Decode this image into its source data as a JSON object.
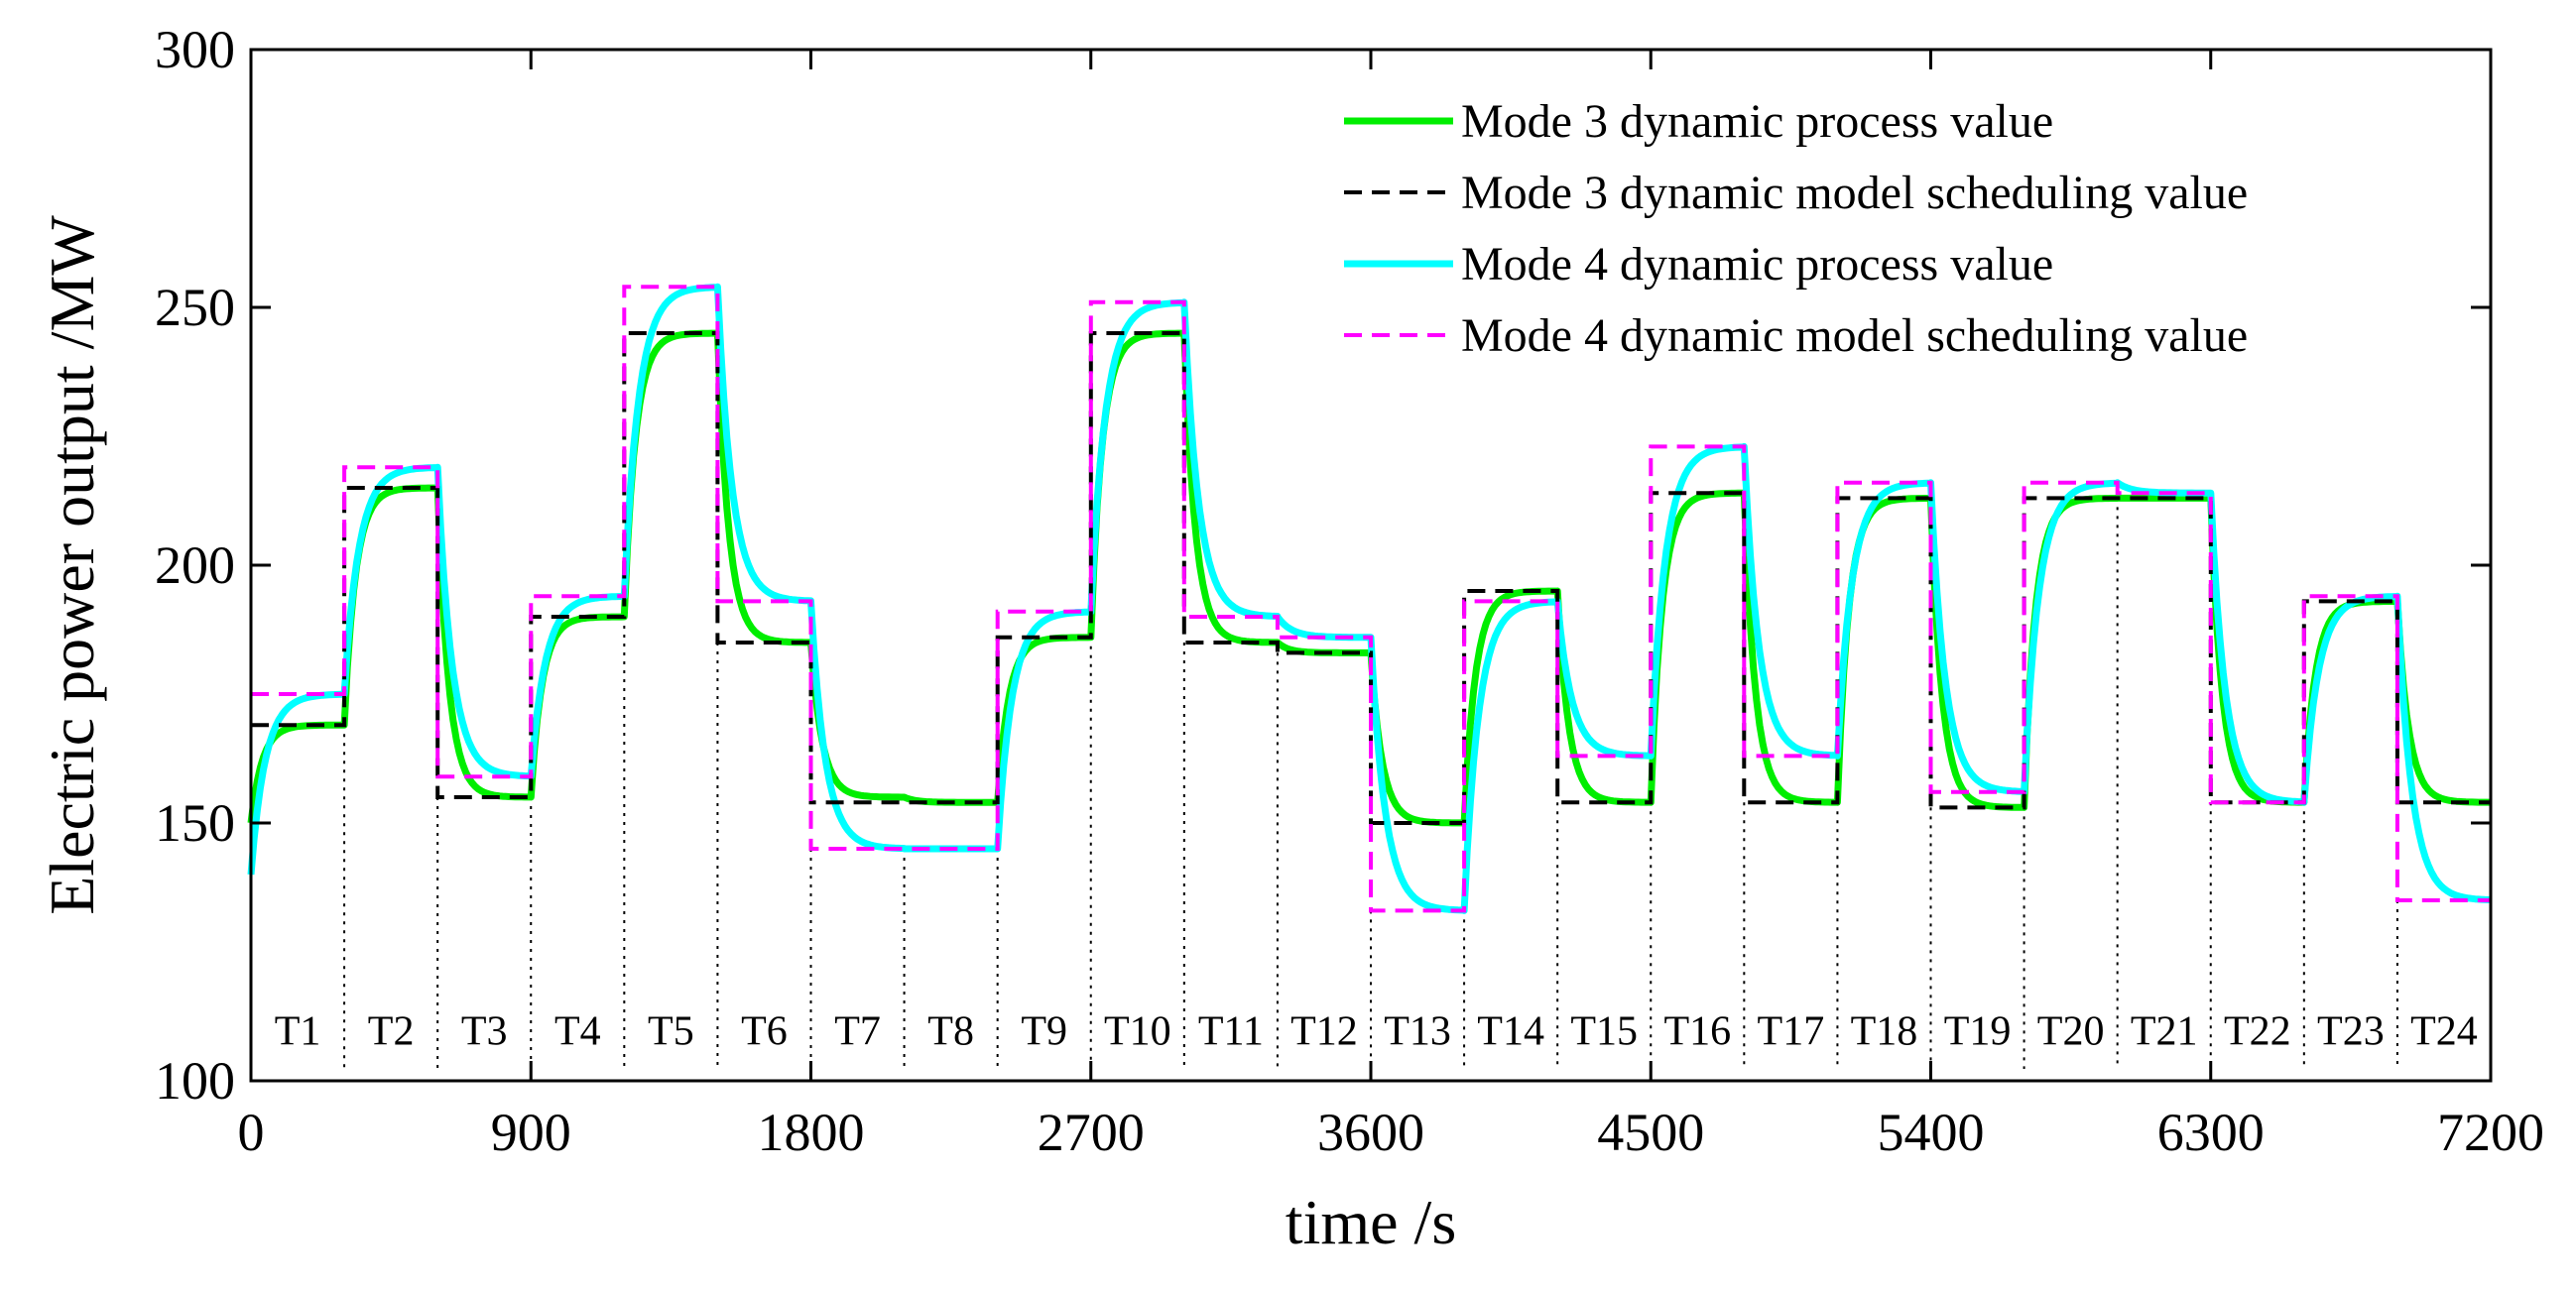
{
  "chart_data": {
    "type": "line",
    "title": "",
    "xlabel": "time /s",
    "ylabel": "Electric power output /MW",
    "xlim": [
      0,
      7200
    ],
    "ylim": [
      100,
      300
    ],
    "xticks": [
      0,
      900,
      1800,
      2700,
      3600,
      4500,
      5400,
      6300,
      7200
    ],
    "yticks": [
      100,
      150,
      200,
      250,
      300
    ],
    "grid": false,
    "legend_position": "top-right",
    "period_seconds": 300,
    "periods": [
      "T1",
      "T2",
      "T3",
      "T4",
      "T5",
      "T6",
      "T7",
      "T8",
      "T9",
      "T10",
      "T11",
      "T12",
      "T13",
      "T14",
      "T15",
      "T16",
      "T17",
      "T18",
      "T19",
      "T20",
      "T21",
      "T22",
      "T23",
      "T24"
    ],
    "series": [
      {
        "name": "Mode 3 dynamic process value",
        "kind": "process",
        "color": "#00ee00",
        "dash": "",
        "initial": 150,
        "values": [
          169,
          215,
          155,
          190,
          245,
          185,
          155,
          154,
          186,
          245,
          185,
          183,
          150,
          195,
          154,
          214,
          154,
          213,
          153,
          213,
          213,
          154,
          193,
          154
        ]
      },
      {
        "name": "Mode 3 dynamic model scheduling value",
        "kind": "schedule",
        "color": "#000000",
        "dash": "18,10",
        "values": [
          169,
          215,
          155,
          190,
          245,
          185,
          154,
          154,
          186,
          245,
          185,
          183,
          150,
          195,
          154,
          214,
          154,
          213,
          153,
          213,
          213,
          154,
          193,
          154
        ]
      },
      {
        "name": "Mode 4 dynamic process value",
        "kind": "process",
        "color": "#00ffff",
        "dash": "",
        "initial": 140,
        "values": [
          175,
          219,
          159,
          194,
          254,
          193,
          145,
          145,
          191,
          251,
          190,
          186,
          133,
          193,
          163,
          223,
          163,
          216,
          156,
          216,
          214,
          154,
          194,
          135
        ]
      },
      {
        "name": "Mode 4 dynamic model scheduling value",
        "kind": "schedule",
        "color": "#ff00ff",
        "dash": "18,10",
        "values": [
          175,
          219,
          159,
          194,
          254,
          193,
          145,
          145,
          191,
          251,
          190,
          186,
          133,
          193,
          163,
          223,
          163,
          216,
          156,
          216,
          214,
          154,
          194,
          135
        ]
      }
    ]
  }
}
